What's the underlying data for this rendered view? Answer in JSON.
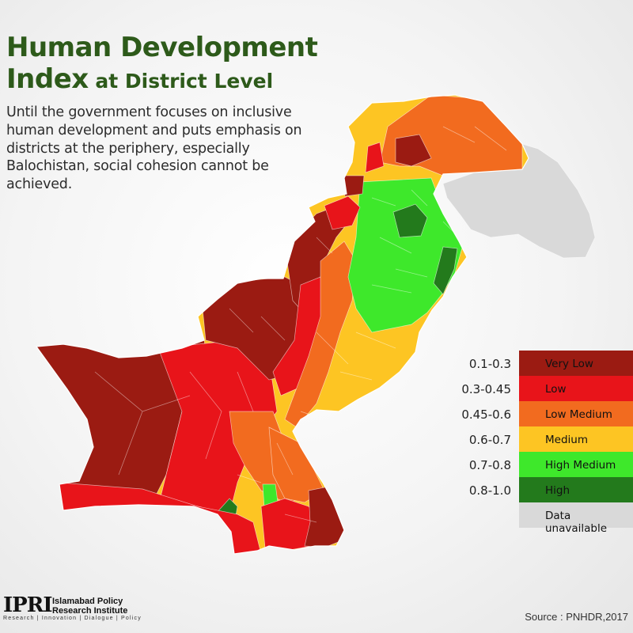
{
  "header": {
    "title_line1": "Human Development",
    "title_line2_big": "Index",
    "title_line2_small": " at District Level",
    "subtitle": "Until the government focuses on inclusive human development and puts emphasis on districts at the periphery, especially Balochistan, social cohesion cannot be achieved."
  },
  "legend": {
    "items": [
      {
        "range": "0.1-0.3",
        "label": "Very Low",
        "color": "#9b1b12"
      },
      {
        "range": "0.3-0.45",
        "label": "Low",
        "color": "#e8141a"
      },
      {
        "range": "0.45-0.6",
        "label": "Low Medium",
        "color": "#f26b1f"
      },
      {
        "range": "0.6-0.7",
        "label": "Medium",
        "color": "#fdc523"
      },
      {
        "range": "0.7-0.8",
        "label": "High Medium",
        "color": "#3ee82b"
      },
      {
        "range": "0.8-1.0",
        "label": "High",
        "color": "#237a1c"
      },
      {
        "range": "",
        "label": "Data unavailable",
        "color": "#d9d9d9"
      }
    ]
  },
  "logo": {
    "mark": "IPRI",
    "name": "Islamabad Policy Research Institute",
    "tagline": "Research | Innovation | Dialogue | Policy"
  },
  "source": "Source : PNHDR,2017",
  "map": {
    "regions": [
      {
        "category": "Data unavailable"
      },
      {
        "category": "Very Low"
      },
      {
        "category": "Low"
      },
      {
        "category": "Low Medium"
      },
      {
        "category": "Medium"
      },
      {
        "category": "High Medium"
      },
      {
        "category": "High"
      }
    ]
  }
}
